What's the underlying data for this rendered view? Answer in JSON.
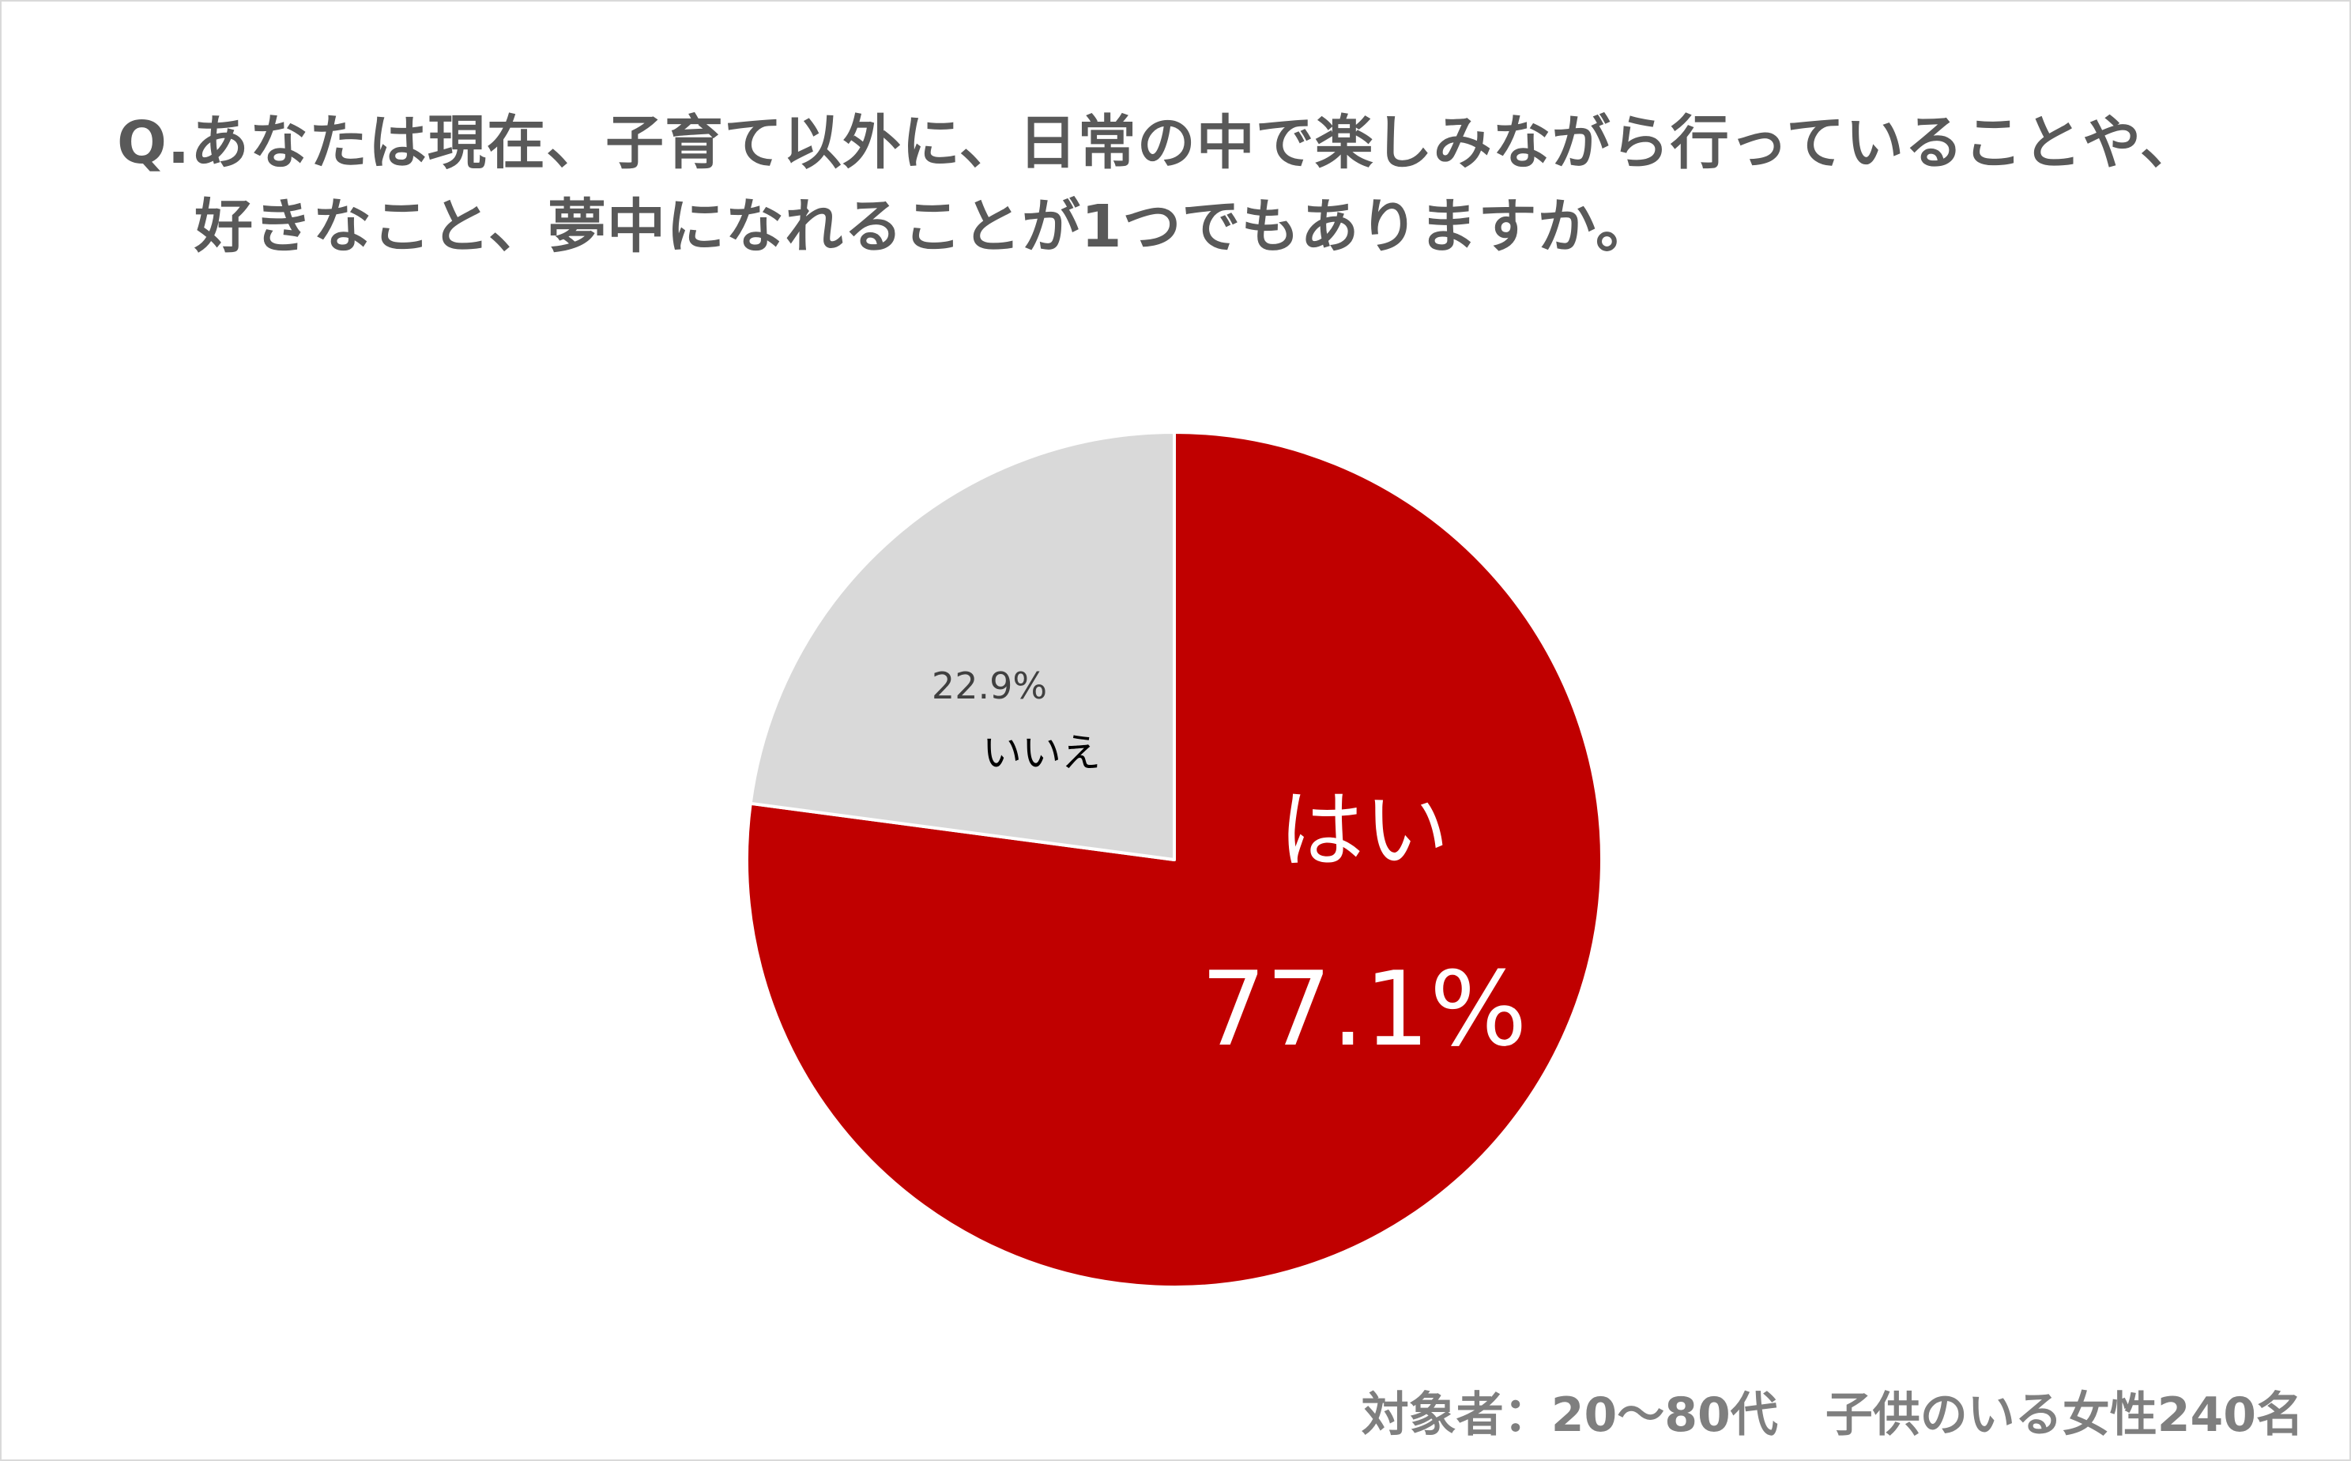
{
  "title": {
    "line1": "Q.あなたは現在、子育て以外に、日常の中で楽しみながら行っていることや、",
    "line2": "好きなこと、夢中になれることが1つでもありますか。"
  },
  "footnote": "対象者：20～80代　子供のいる女性240名",
  "colors": {
    "yes": "#c00000",
    "no": "#d9d9d9",
    "title": "#595959",
    "footnote": "#7f7f7f"
  },
  "chart_data": {
    "type": "pie",
    "title": "",
    "start_angle_deg": 0,
    "direction": "clockwise",
    "slices": [
      {
        "label": "はい",
        "value": 77.1,
        "value_label": "77.1%",
        "color": "#c00000"
      },
      {
        "label": "いいえ",
        "value": 22.9,
        "value_label": "22.9%",
        "color": "#d9d9d9"
      }
    ]
  }
}
